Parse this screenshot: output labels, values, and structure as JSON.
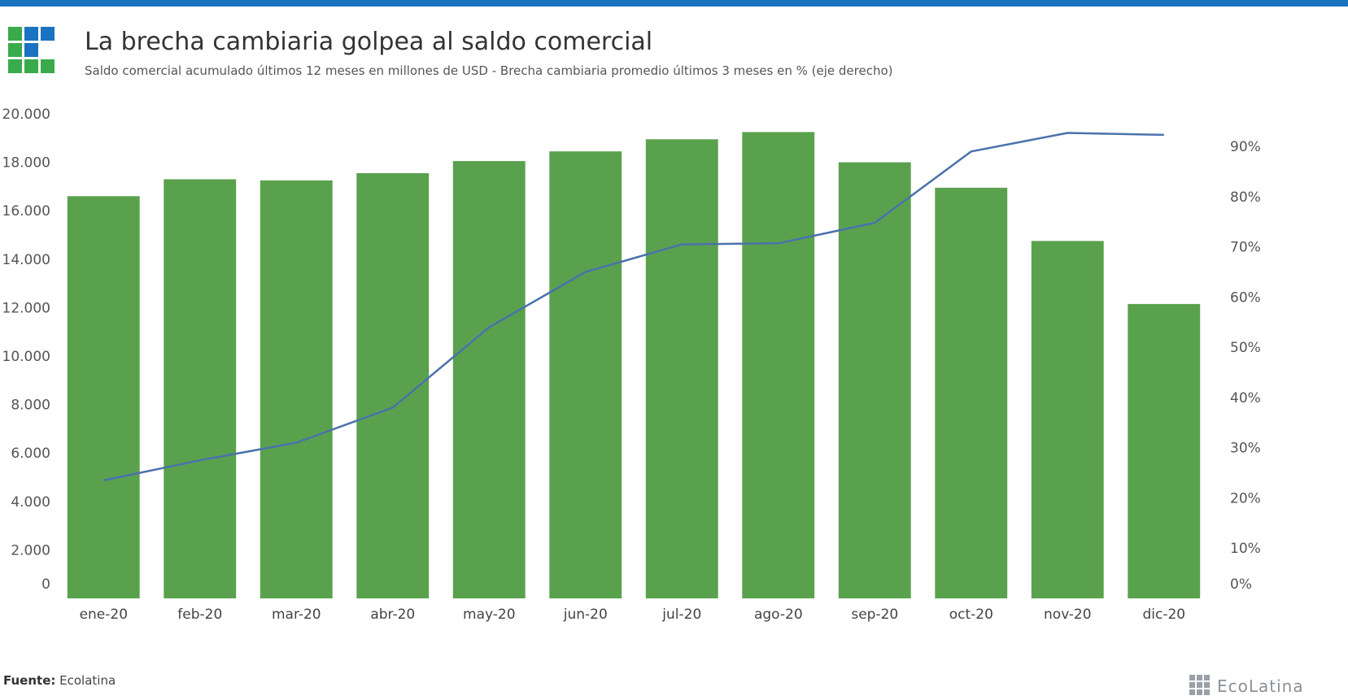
{
  "header": {
    "title": "La brecha cambiaria golpea al saldo comercial",
    "subtitle": "Saldo comercial acumulado últimos 12 meses en millones de USD - Brecha cambiaria promedio últimos 3 meses en % (eje derecho)"
  },
  "logo": {
    "cells": [
      "green",
      "blue",
      "blue",
      "green",
      "blue",
      "empty",
      "green",
      "green",
      "green"
    ],
    "colors": {
      "green": "#3aaa4a",
      "blue": "#1a73c0"
    }
  },
  "colors": {
    "top_bar": "#1a73c0",
    "bar": "#5aa14e",
    "line": "#4a72aa"
  },
  "chart_data": {
    "type": "bar",
    "categories": [
      "ene-20",
      "feb-20",
      "mar-20",
      "abr-20",
      "may-20",
      "jun-20",
      "jul-20",
      "ago-20",
      "sep-20",
      "oct-20",
      "nov-20",
      "dic-20"
    ],
    "series": [
      {
        "kind": "bar",
        "axis": "left",
        "values": [
          16600,
          17300,
          17250,
          17550,
          18050,
          18450,
          18950,
          19250,
          18000,
          16950,
          14750,
          12150
        ]
      },
      {
        "kind": "line",
        "axis": "right",
        "values": [
          23.5,
          27.5,
          31,
          38,
          54,
          65,
          70.5,
          70.7,
          74.8,
          89,
          92.7,
          92.3
        ]
      }
    ],
    "left_axis": {
      "ticks": [
        0,
        2000,
        4000,
        6000,
        8000,
        10000,
        12000,
        14000,
        16000,
        18000,
        20000
      ],
      "tick_labels": [
        "0",
        "2.000",
        "4.000",
        "6.000",
        "8.000",
        "10.000",
        "12.000",
        "14.000",
        "16.000",
        "18.000",
        "20.000"
      ]
    },
    "right_axis": {
      "ticks": [
        0,
        10,
        20,
        30,
        40,
        50,
        60,
        70,
        80,
        90
      ],
      "tick_labels": [
        "0%",
        "10%",
        "20%",
        "30%",
        "40%",
        "50%",
        "60%",
        "70%",
        "80%",
        "90%"
      ]
    },
    "grid": false,
    "legend": "none"
  },
  "footer": {
    "source_label": "Fuente:",
    "source_value": "Ecolatina",
    "brand": "EcoLatina"
  }
}
